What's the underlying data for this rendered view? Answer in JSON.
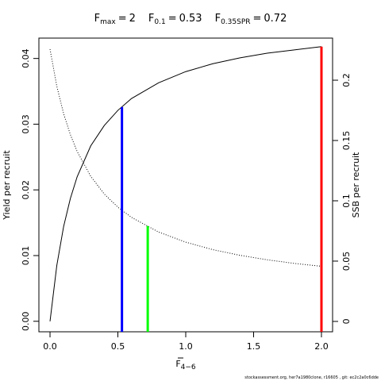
{
  "chart_data": {
    "type": "line",
    "title_separator": "=",
    "reference_points": [
      {
        "symbol": "F",
        "subscript": "max",
        "value": 2,
        "height": 0.0418,
        "color": "#ff0000"
      },
      {
        "symbol": "F",
        "subscript": "0.1",
        "value": 0.53,
        "height": 0.0326,
        "color": "#0000ff"
      },
      {
        "symbol": "F",
        "subscript": "0.35SPR",
        "value": 0.72,
        "height": 0.0145,
        "color": "#00ff00"
      }
    ],
    "xlabel": {
      "text": "F",
      "subscript": "4−6"
    },
    "ylabel": "Yield per recruit",
    "y2label": "SSB per recruit",
    "footer": "stockassessment.org, her7a1980clone, r16605 , git: ec2c2a0c6dde",
    "x": [
      0,
      0.05,
      0.1,
      0.15,
      0.2,
      0.3,
      0.4,
      0.5,
      0.6,
      0.8,
      1.0,
      1.2,
      1.4,
      1.6,
      1.8,
      2.0
    ],
    "series": [
      {
        "name": "Yield per recruit",
        "color": "#000000",
        "dash": "solid",
        "values": [
          0,
          0.0085,
          0.0144,
          0.0187,
          0.022,
          0.0267,
          0.0298,
          0.0321,
          0.0339,
          0.0363,
          0.038,
          0.0392,
          0.0401,
          0.0408,
          0.0413,
          0.0418
        ]
      },
      {
        "name": "SSB per recruit",
        "color": "#000000",
        "dash": "dotted",
        "axis": "y2",
        "values": [
          0.2257,
          0.195,
          0.1723,
          0.1548,
          0.1409,
          0.1203,
          0.1056,
          0.0947,
          0.0863,
          0.0741,
          0.0657,
          0.0595,
          0.0548,
          0.0511,
          0.0481,
          0.0457
        ]
      }
    ],
    "xlim": [
      -0.082,
      2.082
    ],
    "xticks": [
      {
        "value": 0,
        "label": "0.0"
      },
      0.5,
      {
        "value": 1,
        "label": "1.0"
      },
      1.5,
      {
        "value": 2,
        "label": "2.0"
      }
    ],
    "ylim": [
      -0.0016,
      0.0431
    ],
    "yticks": [
      {
        "value": 0,
        "label": "0.00"
      },
      0.01,
      0.02,
      0.03,
      0.04
    ],
    "y2lim": [
      -0.0086,
      0.2349
    ],
    "y2ticks": [
      0,
      0.05,
      0.1,
      0.15,
      0.2
    ]
  }
}
